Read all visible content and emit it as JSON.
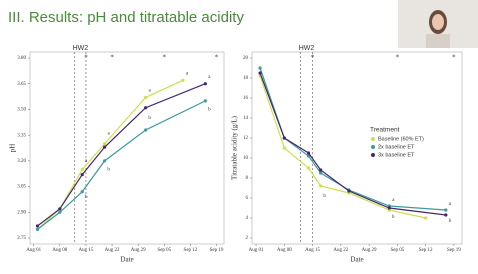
{
  "title": "III. Results: pH and titratable acidity",
  "chart_data": [
    {
      "type": "line",
      "y_label": "pH",
      "x_label": "Date",
      "ylim": [
        2.75,
        3.8
      ],
      "yticks": [
        {
          "value": 2.75,
          "label": "2.75"
        },
        {
          "value": 2.9,
          "label": "2.90"
        },
        {
          "value": 3.05,
          "label": "3.05"
        },
        {
          "value": 3.2,
          "label": "3.20"
        },
        {
          "value": 3.35,
          "label": "3.35"
        },
        {
          "value": 3.5,
          "label": "3.50"
        },
        {
          "value": 3.65,
          "label": "3.65"
        },
        {
          "value": 3.8,
          "label": "3.80"
        }
      ],
      "xlim": [
        "Jul 31",
        "Sep 21"
      ],
      "xticks": [
        "Aug 01",
        "Aug 08",
        "Aug 15",
        "Aug 22",
        "Aug 29",
        "Sep 05",
        "Sep 12",
        "Sep 19"
      ],
      "window": {
        "label": "HW2",
        "start": "Aug 12",
        "end": "Aug 15"
      },
      "markers": [
        {
          "text": "*",
          "x": "Aug 15"
        },
        {
          "text": "*",
          "x": "Aug 22"
        },
        {
          "text": "*",
          "x": "Sep 05"
        },
        {
          "text": "*",
          "x": "Sep 19"
        }
      ],
      "series": [
        {
          "name": "Baseline (60% ET)",
          "color": "#cde04c",
          "x": [
            "Aug 02",
            "Aug 08",
            "Aug 14",
            "Aug 20",
            "Aug 31",
            "Sep 10"
          ],
          "values": [
            2.8,
            2.92,
            3.15,
            3.3,
            3.57,
            3.67
          ]
        },
        {
          "name": "2x baseline ET",
          "color": "#3a9a9c",
          "x": [
            "Aug 02",
            "Aug 08",
            "Aug 14",
            "Aug 20",
            "Aug 31",
            "Sep 16"
          ],
          "values": [
            2.8,
            2.9,
            3.02,
            3.2,
            3.38,
            3.55
          ]
        },
        {
          "name": "3x baseline ET",
          "color": "#46266e",
          "x": [
            "Aug 02",
            "Aug 08",
            "Aug 14",
            "Aug 20",
            "Aug 31",
            "Sep 16"
          ],
          "values": [
            2.82,
            2.92,
            3.12,
            3.28,
            3.51,
            3.65
          ]
        }
      ],
      "annotations": [
        {
          "text": "a",
          "x": "Aug 14",
          "y": 3.2
        },
        {
          "text": "b",
          "x": "Aug 14",
          "y": 2.99
        },
        {
          "text": "a",
          "x": "Aug 20",
          "y": 3.36
        },
        {
          "text": "b",
          "x": "Aug 20",
          "y": 3.15
        },
        {
          "text": "a",
          "x": "Aug 31",
          "y": 3.61
        },
        {
          "text": "b",
          "x": "Aug 31",
          "y": 3.45
        },
        {
          "text": "a",
          "x": "Sep 10",
          "y": 3.71
        },
        {
          "text": "a",
          "x": "Sep 16",
          "y": 3.69
        },
        {
          "text": "b",
          "x": "Sep 16",
          "y": 3.5
        }
      ]
    },
    {
      "type": "line",
      "y_label": "Titratable acidity (g/L)",
      "x_label": "Date",
      "ylim": [
        2,
        20
      ],
      "yticks": [
        2,
        4,
        6,
        8,
        10,
        12,
        14,
        16,
        18,
        20
      ],
      "xlim": [
        "Jul 31",
        "Sep 21"
      ],
      "xticks": [
        "Aug 01",
        "Aug 08",
        "Aug 15",
        "Aug 22",
        "Aug 29",
        "Sep 05",
        "Sep 12",
        "Sep 19"
      ],
      "window": {
        "label": "HW2",
        "start": "Aug 12",
        "end": "Aug 15"
      },
      "markers": [
        {
          "text": "*",
          "x": "Aug 15"
        },
        {
          "text": "*",
          "x": "Sep 05"
        },
        {
          "text": "*",
          "x": "Sep 19"
        }
      ],
      "legend_title": "Treatment",
      "series": [
        {
          "name": "Baseline (60% ET)",
          "color": "#cde04c",
          "x": [
            "Aug 02",
            "Aug 08",
            "Aug 14",
            "Aug 17",
            "Aug 24",
            "Sep 03",
            "Sep 12"
          ],
          "values": [
            18.2,
            11.0,
            9.0,
            7.2,
            6.5,
            4.8,
            4.0
          ]
        },
        {
          "name": "2x baseline ET",
          "color": "#3a9a9c",
          "x": [
            "Aug 02",
            "Aug 08",
            "Aug 14",
            "Aug 17",
            "Aug 24",
            "Sep 03",
            "Sep 17"
          ],
          "values": [
            19.0,
            12.0,
            10.2,
            8.5,
            6.8,
            5.2,
            4.8
          ]
        },
        {
          "name": "3x baseline ET",
          "color": "#46266e",
          "x": [
            "Aug 02",
            "Aug 08",
            "Aug 14",
            "Aug 17",
            "Aug 24",
            "Sep 03",
            "Sep 17"
          ],
          "values": [
            18.5,
            12.0,
            10.5,
            8.8,
            6.7,
            5.0,
            4.3
          ]
        }
      ],
      "annotations": [
        {
          "text": "b",
          "x": "Aug 17",
          "y": 6.2
        },
        {
          "text": "a",
          "x": "Sep 03",
          "y": 5.8
        },
        {
          "text": "b",
          "x": "Sep 03",
          "y": 4.1
        },
        {
          "text": "a",
          "x": "Sep 17",
          "y": 5.4
        },
        {
          "text": "b",
          "x": "Sep 17",
          "y": 3.7
        }
      ]
    }
  ]
}
